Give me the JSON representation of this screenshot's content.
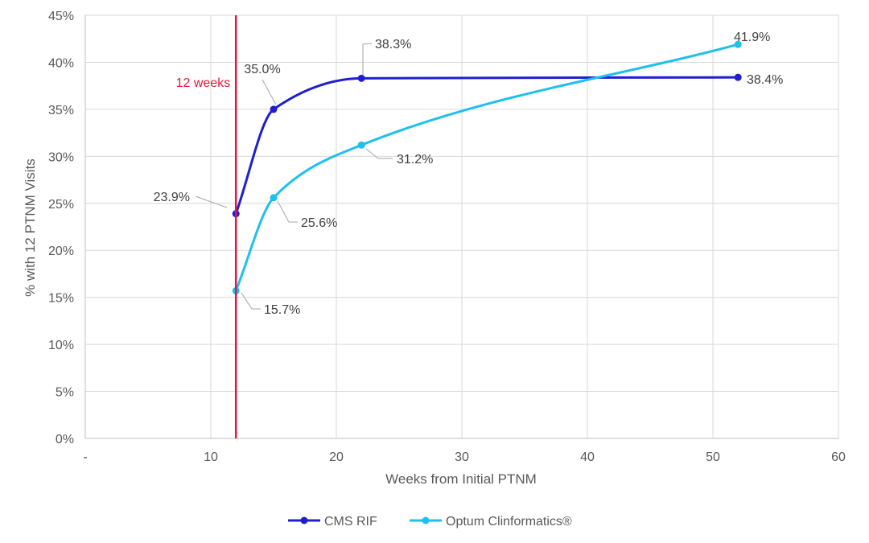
{
  "chart_data": {
    "type": "line",
    "xlabel": "Weeks from Initial PTNM",
    "ylabel": "% with 12 PTNM Visits",
    "xlim": [
      0,
      60
    ],
    "ylim": [
      0,
      45
    ],
    "x_ticks": [
      "-",
      "10",
      "20",
      "30",
      "40",
      "50",
      "60"
    ],
    "y_ticks": [
      "0%",
      "5%",
      "10%",
      "15%",
      "20%",
      "25%",
      "30%",
      "35%",
      "40%",
      "45%"
    ],
    "grid": true,
    "legend_position": "bottom",
    "reference_line": {
      "x": 12,
      "label": "12 weeks",
      "color": "#e8173a"
    },
    "series": [
      {
        "name": "CMS RIF",
        "color": "#1f1fd1",
        "points": [
          {
            "x": 12,
            "y": 23.9,
            "label": "23.9%"
          },
          {
            "x": 15,
            "y": 35.0,
            "label": "35.0%"
          },
          {
            "x": 22,
            "y": 38.3,
            "label": "38.3%"
          },
          {
            "x": 52,
            "y": 38.4,
            "label": "38.4%"
          }
        ]
      },
      {
        "name": "Optum Clinformatics®",
        "color": "#1ec0ee",
        "points": [
          {
            "x": 12,
            "y": 15.7,
            "label": "15.7%"
          },
          {
            "x": 15,
            "y": 25.6,
            "label": "25.6%"
          },
          {
            "x": 22,
            "y": 31.2,
            "label": "31.2%"
          },
          {
            "x": 52,
            "y": 41.9,
            "label": "41.9%"
          }
        ]
      }
    ]
  }
}
